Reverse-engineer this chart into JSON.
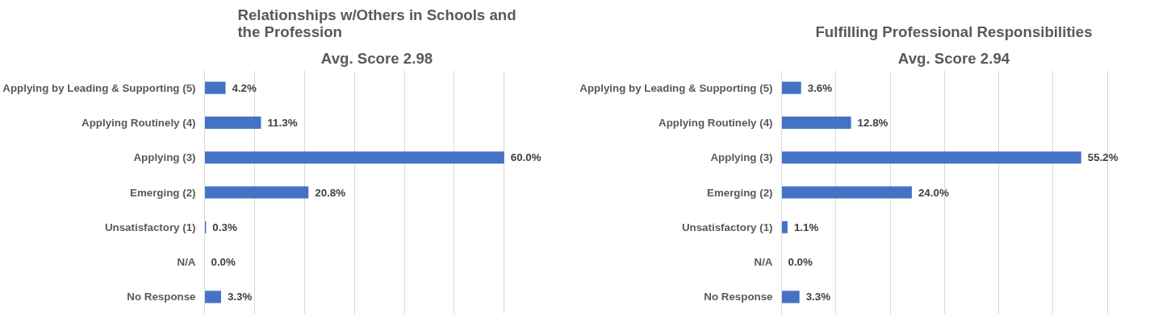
{
  "chart_data": [
    {
      "type": "bar",
      "orientation": "horizontal",
      "title": "Relationships w/Others in Schools and the Profession",
      "subtitle": "Avg. Score 2.98",
      "categories": [
        "Applying by Leading & Supporting (5)",
        "Applying Routinely (4)",
        "Applying (3)",
        "Emerging (2)",
        "Unsatisfactory (1)",
        "N/A",
        "No Response"
      ],
      "values": [
        4.2,
        11.3,
        60.0,
        20.8,
        0.3,
        0.0,
        3.3
      ],
      "value_labels": [
        "4.2%",
        "11.3%",
        "60.0%",
        "20.8%",
        "0.3%",
        "0.0%",
        "3.3%"
      ],
      "color": "#4472c4",
      "tick_labels": "y",
      "grid": "x",
      "legend": false
    },
    {
      "type": "bar",
      "orientation": "horizontal",
      "title": "Fulfilling Professional Responsibilities",
      "subtitle": "Avg. Score 2.94",
      "categories": [
        "Applying by Leading & Supporting (5)",
        "Applying Routinely (4)",
        "Applying (3)",
        "Emerging (2)",
        "Unsatisfactory (1)",
        "N/A",
        "No Response"
      ],
      "values": [
        3.6,
        12.8,
        55.2,
        24.0,
        1.1,
        0.0,
        3.3
      ],
      "value_labels": [
        "3.6%",
        "12.8%",
        "55.2%",
        "24.0%",
        "1.1%",
        "0.0%",
        "3.3%"
      ],
      "color": "#4472c4",
      "tick_labels": "y",
      "grid": "x",
      "legend": false
    }
  ]
}
